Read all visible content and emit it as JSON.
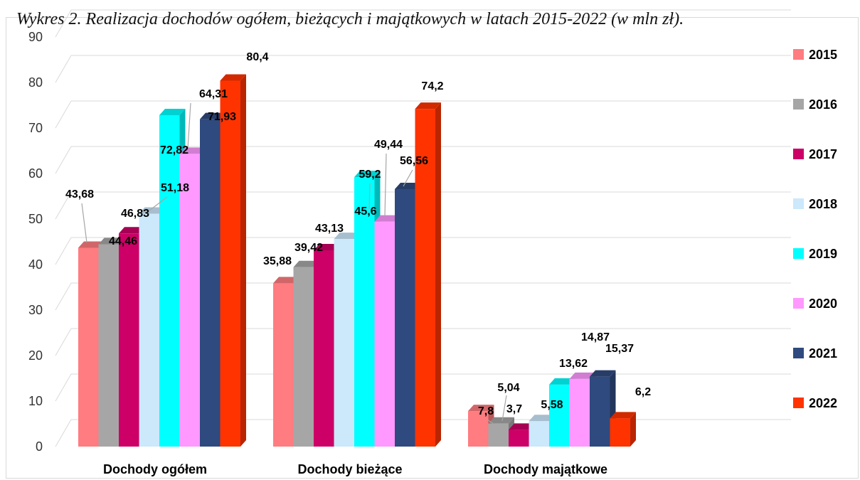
{
  "caption": "Wykres 2. Realizacja dochodów ogółem, bieżących i majątkowych w latach 2015-2022 (w mln zł).",
  "colors": {
    "2015": "#ff7c80",
    "2016": "#a6a6a6",
    "2017": "#cc0066",
    "2018": "#cce8fb",
    "2019": "#00ffff",
    "2020": "#ff99ff",
    "2021": "#2f4a7e",
    "2022": "#ff3300"
  },
  "chart_data": {
    "type": "bar",
    "categories": [
      "Dochody ogółem",
      "Dochody bieżące",
      "Dochody majątkowe"
    ],
    "series": [
      {
        "name": "2015",
        "values": [
          43.68,
          35.88,
          7.8
        ]
      },
      {
        "name": "2016",
        "values": [
          44.46,
          39.42,
          5.04
        ]
      },
      {
        "name": "2017",
        "values": [
          46.83,
          43.13,
          3.7
        ]
      },
      {
        "name": "2018",
        "values": [
          51.18,
          45.6,
          5.58
        ]
      },
      {
        "name": "2019",
        "values": [
          72.82,
          59.2,
          13.62
        ]
      },
      {
        "name": "2020",
        "values": [
          64.31,
          49.44,
          14.87
        ]
      },
      {
        "name": "2021",
        "values": [
          71.93,
          56.56,
          15.37
        ]
      },
      {
        "name": "2022",
        "values": [
          80.4,
          74.2,
          6.2
        ]
      }
    ],
    "data_labels": [
      [
        "43,68",
        "35,88",
        "7,8"
      ],
      [
        "44,46",
        "39,42",
        "5,04"
      ],
      [
        "46,83",
        "43,13",
        "3,7"
      ],
      [
        "51,18",
        "45,6",
        "5,58"
      ],
      [
        "72,82",
        "59,2",
        "13,62"
      ],
      [
        "64,31",
        "49,44",
        "14,87"
      ],
      [
        "71,93",
        "56,56",
        "15,37"
      ],
      [
        "80,4",
        "74,2",
        "6,2"
      ]
    ],
    "ylim": [
      0,
      90
    ],
    "yticks": [
      "0",
      "10",
      "20",
      "30",
      "40",
      "50",
      "60",
      "70",
      "80",
      "90"
    ],
    "grid": true,
    "legend": "right",
    "style": "3d-clustered-column"
  }
}
